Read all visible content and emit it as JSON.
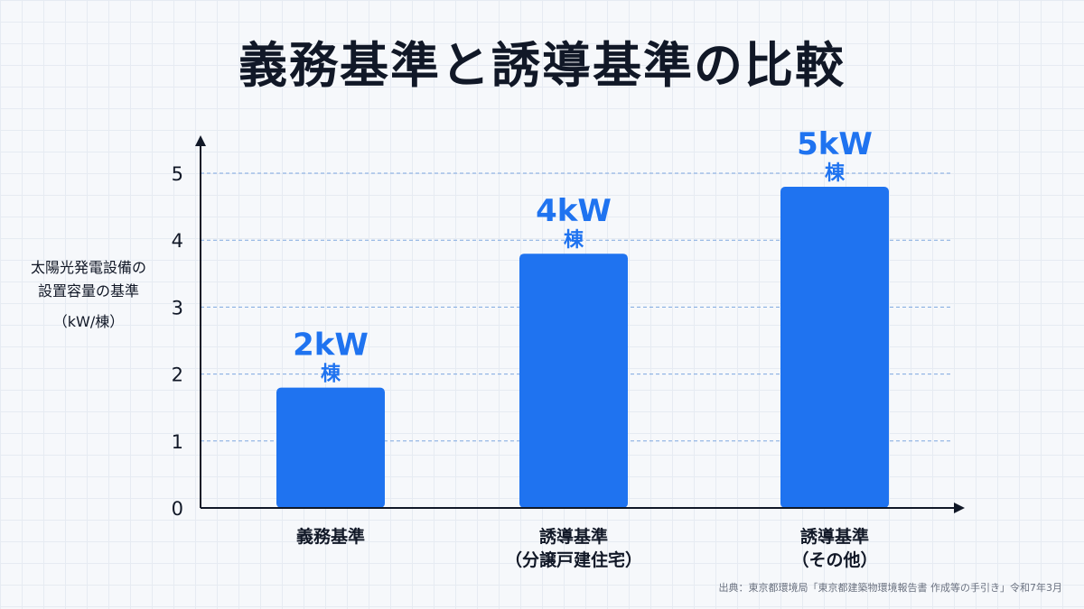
{
  "title": "義務基準と誘導基準の比較",
  "source": "出典：東京都環境局「東京都建築物環境報告書 作成等の手引き」令和7年3月",
  "colors": {
    "bar": "#1f73f0",
    "value_label": "#1f73f0",
    "axis": "#111827",
    "grid": "#7ea7e0"
  },
  "chart_data": {
    "type": "bar",
    "title": "義務基準と誘導基準の比較",
    "ylabel_lines": [
      "太陽光発電設備の",
      "設置容量の基準"
    ],
    "ylabel_unit": "（kW/棟）",
    "ylim": [
      0,
      5.5
    ],
    "yticks": [
      "0",
      "1",
      "2",
      "3",
      "4",
      "5"
    ],
    "grid": "horizontal dashed",
    "categories": [
      [
        "義務基準"
      ],
      [
        "誘導基準",
        "（分譲戸建住宅）"
      ],
      [
        "誘導基準",
        "（その他）"
      ]
    ],
    "values": [
      2,
      4,
      5
    ],
    "value_labels": [
      {
        "num": "2kW",
        "unit": "棟"
      },
      {
        "num": "4kW",
        "unit": "棟"
      },
      {
        "num": "5kW",
        "unit": "棟"
      }
    ]
  }
}
